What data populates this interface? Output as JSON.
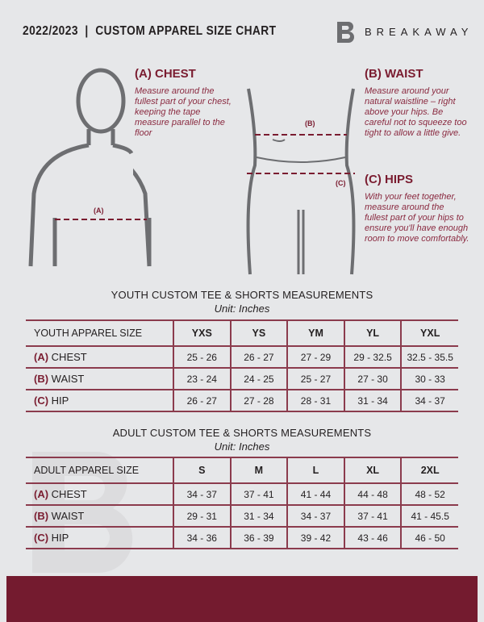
{
  "header": {
    "title": "2022/2023  |  CUSTOM APPAREL SIZE CHART",
    "brand": "BREAKAWAY"
  },
  "guide": {
    "chest": {
      "title": "(A) CHEST",
      "text": "Measure around the fullest part of your chest, keeping the tape measure parallel to the floor",
      "marker": "(A)"
    },
    "waist": {
      "title": "(B) WAIST",
      "text": "Measure around your natural waistline – right above your hips. Be careful not to squeeze too tight to allow a little give.",
      "marker": "(B)"
    },
    "hips": {
      "title": "(C) HIPS",
      "text": "With your feet together, measure around the fullest part of your hips to ensure you'll have enough room to move comfortably.",
      "marker": "(C)"
    }
  },
  "youth": {
    "title": "YOUTH CUSTOM TEE & SHORTS MEASUREMENTS",
    "unit": "Unit: Inches",
    "header": [
      "YOUTH APPAREL SIZE",
      "YXS",
      "YS",
      "YM",
      "YL",
      "YXL"
    ],
    "rows": [
      {
        "code": "(A)",
        "name": "CHEST",
        "values": [
          "25 - 26",
          "26 - 27",
          "27 - 29",
          "29 - 32.5",
          "32.5 - 35.5"
        ]
      },
      {
        "code": "(B)",
        "name": "WAIST",
        "values": [
          "23 - 24",
          "24 - 25",
          "25 - 27",
          "27 - 30",
          "30 - 33"
        ]
      },
      {
        "code": "(C)",
        "name": "HIP",
        "values": [
          "26 - 27",
          "27 - 28",
          "28 - 31",
          "31 - 34",
          "34 - 37"
        ]
      }
    ]
  },
  "adult": {
    "title": "ADULT CUSTOM TEE & SHORTS MEASUREMENTS",
    "unit": "Unit: Inches",
    "header": [
      "ADULT APPAREL SIZE",
      "S",
      "M",
      "L",
      "XL",
      "2XL"
    ],
    "rows": [
      {
        "code": "(A)",
        "name": "CHEST",
        "values": [
          "34 - 37",
          "37 - 41",
          "41 - 44",
          "44 - 48",
          "48 - 52"
        ]
      },
      {
        "code": "(B)",
        "name": "WAIST",
        "values": [
          "29 - 31",
          "31 - 34",
          "34 - 37",
          "37 - 41",
          "41 - 45.5"
        ]
      },
      {
        "code": "(C)",
        "name": "HIP",
        "values": [
          "34 - 36",
          "36 - 39",
          "39 - 42",
          "43 - 46",
          "46 - 50"
        ]
      }
    ]
  },
  "colors": {
    "accent": "#741b2f",
    "background": "#e6e7e9"
  }
}
